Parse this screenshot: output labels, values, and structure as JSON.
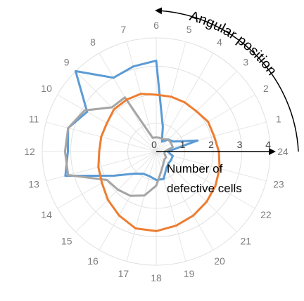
{
  "chart_data": {
    "type": "radar",
    "angular_labels": [
      "1",
      "2",
      "3",
      "4",
      "5",
      "6",
      "7",
      "8",
      "9",
      "10",
      "11",
      "12",
      "13",
      "14",
      "15",
      "16",
      "17",
      "18",
      "19",
      "20",
      "21",
      "22",
      "23",
      "24"
    ],
    "radial_ticks": [
      "0",
      "1",
      "2",
      "3",
      "4"
    ],
    "rlim": [
      0,
      4
    ],
    "series": [
      {
        "color": "#5b9bd5",
        "values": [
          1.5,
          0.7,
          0.6,
          0.4,
          0.9,
          3.2,
          3.1,
          3.0,
          4.0,
          2.8,
          3.2,
          3.1,
          3.3,
          1.7,
          1.1,
          0.9,
          0.9,
          1.0,
          1.0,
          0.7,
          0.6,
          0.6,
          0.6,
          0.4
        ]
      },
      {
        "color": "#a5a5a5",
        "values": [
          0.6,
          0.6,
          0.6,
          0.5,
          0.5,
          0.5,
          0.5,
          2.2,
          2.2,
          2.9,
          3.2,
          3.2,
          3.2,
          2.0,
          1.9,
          1.8,
          1.6,
          1.2,
          0.7,
          0.5,
          0.4,
          0.4,
          0.3,
          0.3
        ]
      },
      {
        "color": "#ed7d31",
        "values": [
          2.1,
          2.1,
          2.0,
          2.0,
          2.0,
          2.0,
          2.1,
          2.1,
          2.1,
          2.0,
          2.0,
          2.0,
          2.1,
          2.2,
          2.4,
          2.6,
          2.8,
          2.8,
          2.7,
          2.6,
          2.5,
          2.4,
          2.3,
          2.2
        ]
      }
    ],
    "grid": true,
    "legend": "none"
  },
  "annotations": {
    "radial_axis_label_line1": "Number of",
    "radial_axis_label_line2": "defective cells",
    "angular_axis_label": "Angular position"
  }
}
